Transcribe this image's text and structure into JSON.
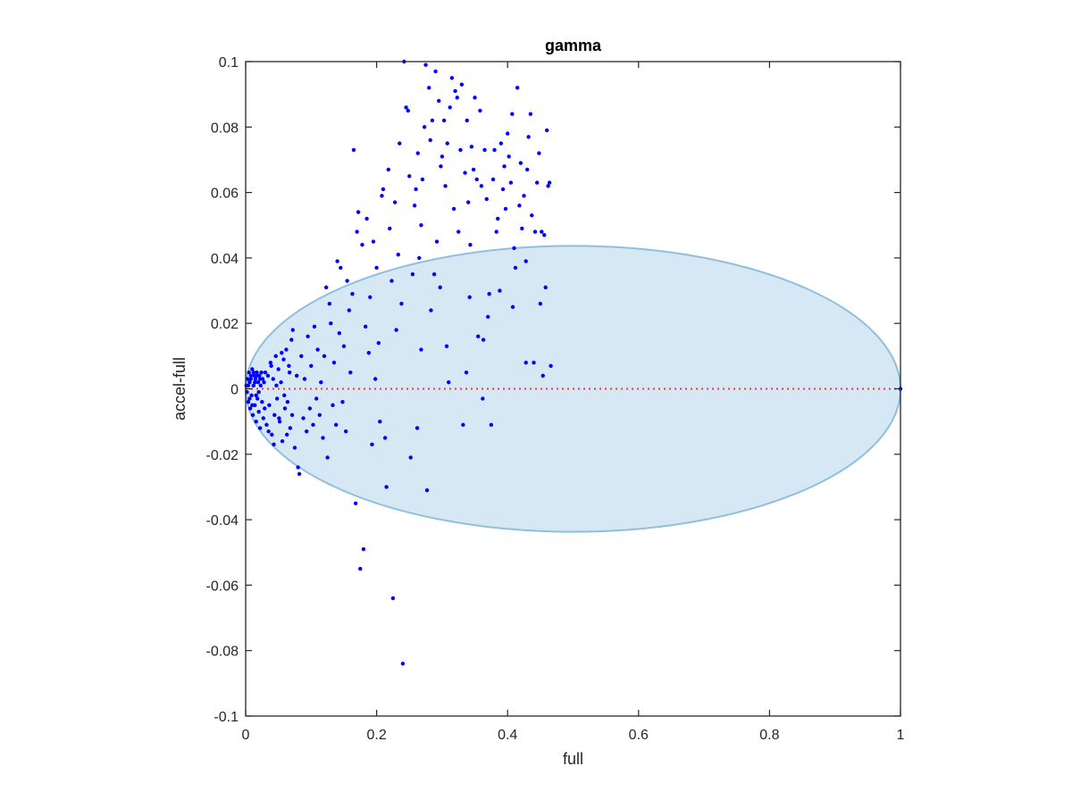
{
  "chart_data": {
    "type": "scatter",
    "title": "gamma",
    "xlabel": "full",
    "ylabel": "accel-full",
    "xlim": [
      0,
      1
    ],
    "ylim": [
      -0.1,
      0.1
    ],
    "xticks": [
      0,
      0.2,
      0.4,
      0.6,
      0.8,
      1
    ],
    "xtick_labels": [
      "0",
      "0.2",
      "0.4",
      "0.6",
      "0.8",
      "1"
    ],
    "yticks": [
      -0.1,
      -0.08,
      -0.06,
      -0.04,
      -0.02,
      0,
      0.02,
      0.04,
      0.06,
      0.08,
      0.1
    ],
    "ytick_labels": [
      "-0.1",
      "-0.08",
      "-0.06",
      "-0.04",
      "-0.02",
      "0",
      "0.02",
      "0.04",
      "0.06",
      "0.08",
      "0.1"
    ],
    "grid": false,
    "colors": {
      "points": "#0000ff",
      "reference_line": "#ff3333",
      "ellipse_fill": "#d6e8f4",
      "ellipse_stroke": "#8fbfdf",
      "axes": "#262626"
    },
    "reference_line": {
      "y": 0,
      "x_range": [
        0,
        1
      ],
      "style": "dotted"
    },
    "ellipse": {
      "x_range": [
        0,
        1
      ],
      "y_range": [
        -0.0437,
        0.0437
      ]
    },
    "series": [
      {
        "points": [
          [
            0.001,
            0.001
          ],
          [
            0.002,
            -0.001
          ],
          [
            0.003,
            0.003
          ],
          [
            0.004,
            -0.004
          ],
          [
            0.005,
            0.005
          ],
          [
            0.006,
            0.002
          ],
          [
            0.007,
            -0.006
          ],
          [
            0.008,
            0.004
          ],
          [
            0.009,
            -0.002
          ],
          [
            0.01,
            0.006
          ],
          [
            0.011,
            -0.008
          ],
          [
            0.012,
            0.001
          ],
          [
            0.013,
            0.004
          ],
          [
            0.014,
            -0.005
          ],
          [
            0.015,
            0.003
          ],
          [
            0.016,
            -0.01
          ],
          [
            0.017,
            0.005
          ],
          [
            0.018,
            -0.003
          ],
          [
            0.019,
            0.002
          ],
          [
            0.02,
            -0.007
          ],
          [
            0.021,
            0.004
          ],
          [
            0.022,
            -0.012
          ],
          [
            0.023,
            0.001
          ],
          [
            0.024,
            0.005
          ],
          [
            0.025,
            -0.004
          ],
          [
            0.026,
            0.003
          ],
          [
            0.027,
            -0.009
          ],
          [
            0.028,
            0.002
          ],
          [
            0.029,
            -0.006
          ],
          [
            0.03,
            0.005
          ],
          [
            0.004,
            0.001
          ],
          [
            0.006,
            -0.003
          ],
          [
            0.008,
            0.003
          ],
          [
            0.01,
            -0.005
          ],
          [
            0.012,
            0.005
          ],
          [
            0.014,
            0.002
          ],
          [
            0.016,
            -0.002
          ],
          [
            0.018,
            0.004
          ],
          [
            0.02,
            -0.001
          ],
          [
            0.022,
            0.003
          ],
          [
            0.032,
            -0.011
          ],
          [
            0.034,
            0.004
          ],
          [
            0.036,
            -0.005
          ],
          [
            0.038,
            0.008
          ],
          [
            0.04,
            -0.014
          ],
          [
            0.042,
            0.003
          ],
          [
            0.044,
            -0.008
          ],
          [
            0.046,
            0.01
          ],
          [
            0.048,
            -0.003
          ],
          [
            0.05,
            0.006
          ],
          [
            0.052,
            -0.01
          ],
          [
            0.054,
            0.002
          ],
          [
            0.056,
            -0.016
          ],
          [
            0.058,
            0.009
          ],
          [
            0.06,
            -0.006
          ],
          [
            0.062,
            0.012
          ],
          [
            0.064,
            -0.004
          ],
          [
            0.066,
            0.007
          ],
          [
            0.068,
            -0.012
          ],
          [
            0.07,
            0.015
          ],
          [
            0.035,
            -0.013
          ],
          [
            0.039,
            0.007
          ],
          [
            0.043,
            -0.017
          ],
          [
            0.047,
            0.001
          ],
          [
            0.051,
            -0.009
          ],
          [
            0.055,
            0.011
          ],
          [
            0.059,
            -0.002
          ],
          [
            0.063,
            -0.014
          ],
          [
            0.067,
            0.005
          ],
          [
            0.071,
            -0.008
          ],
          [
            0.072,
            0.018
          ],
          [
            0.075,
            -0.018
          ],
          [
            0.078,
            0.004
          ],
          [
            0.08,
            -0.024
          ],
          [
            0.082,
            -0.026
          ],
          [
            0.085,
            0.01
          ],
          [
            0.088,
            -0.009
          ],
          [
            0.09,
            0.003
          ],
          [
            0.093,
            -0.013
          ],
          [
            0.095,
            0.016
          ],
          [
            0.098,
            -0.006
          ],
          [
            0.1,
            0.007
          ],
          [
            0.103,
            -0.011
          ],
          [
            0.105,
            0.019
          ],
          [
            0.108,
            -0.003
          ],
          [
            0.11,
            0.012
          ],
          [
            0.113,
            -0.008
          ],
          [
            0.115,
            0.002
          ],
          [
            0.118,
            -0.015
          ],
          [
            0.12,
            0.01
          ],
          [
            0.123,
            0.031
          ],
          [
            0.125,
            -0.021
          ],
          [
            0.128,
            0.026
          ],
          [
            0.13,
            0.02
          ],
          [
            0.133,
            -0.005
          ],
          [
            0.135,
            0.008
          ],
          [
            0.138,
            -0.011
          ],
          [
            0.14,
            0.039
          ],
          [
            0.143,
            0.017
          ],
          [
            0.145,
            0.037
          ],
          [
            0.148,
            -0.004
          ],
          [
            0.15,
            0.013
          ],
          [
            0.153,
            -0.013
          ],
          [
            0.155,
            0.033
          ],
          [
            0.158,
            0.024
          ],
          [
            0.16,
            0.005
          ],
          [
            0.163,
            0.029
          ],
          [
            0.165,
            0.073
          ],
          [
            0.168,
            -0.035
          ],
          [
            0.17,
            0.048
          ],
          [
            0.172,
            0.054
          ],
          [
            0.175,
            -0.055
          ],
          [
            0.178,
            0.044
          ],
          [
            0.18,
            -0.049
          ],
          [
            0.183,
            0.019
          ],
          [
            0.185,
            0.052
          ],
          [
            0.188,
            0.011
          ],
          [
            0.19,
            0.028
          ],
          [
            0.193,
            -0.017
          ],
          [
            0.195,
            0.045
          ],
          [
            0.198,
            0.003
          ],
          [
            0.2,
            0.037
          ],
          [
            0.203,
            0.014
          ],
          [
            0.205,
            -0.01
          ],
          [
            0.208,
            0.059
          ],
          [
            0.21,
            0.061
          ],
          [
            0.213,
            -0.015
          ],
          [
            0.215,
            -0.03
          ],
          [
            0.218,
            0.067
          ],
          [
            0.22,
            0.049
          ],
          [
            0.223,
            0.033
          ],
          [
            0.225,
            -0.064
          ],
          [
            0.228,
            0.057
          ],
          [
            0.23,
            0.018
          ],
          [
            0.233,
            0.041
          ],
          [
            0.235,
            0.075
          ],
          [
            0.238,
            0.026
          ],
          [
            0.24,
            -0.084
          ],
          [
            0.242,
            0.1
          ],
          [
            0.245,
            0.086
          ],
          [
            0.248,
            0.085
          ],
          [
            0.25,
            0.065
          ],
          [
            0.252,
            -0.021
          ],
          [
            0.255,
            0.035
          ],
          [
            0.258,
            0.056
          ],
          [
            0.26,
            0.061
          ],
          [
            0.263,
            0.072
          ],
          [
            0.265,
            0.04
          ],
          [
            0.268,
            0.05
          ],
          [
            0.27,
            0.064
          ],
          [
            0.273,
            0.08
          ],
          [
            0.275,
            0.099
          ],
          [
            0.277,
            -0.031
          ],
          [
            0.28,
            0.092
          ],
          [
            0.282,
            0.076
          ],
          [
            0.285,
            0.082
          ],
          [
            0.288,
            0.035
          ],
          [
            0.29,
            0.097
          ],
          [
            0.292,
            0.045
          ],
          [
            0.295,
            0.088
          ],
          [
            0.298,
            0.068
          ],
          [
            0.3,
            0.071
          ],
          [
            0.303,
            0.082
          ],
          [
            0.305,
            0.062
          ],
          [
            0.308,
            0.075
          ],
          [
            0.31,
            0.002
          ],
          [
            0.312,
            0.086
          ],
          [
            0.315,
            0.095
          ],
          [
            0.318,
            0.055
          ],
          [
            0.32,
            0.091
          ],
          [
            0.323,
            0.089
          ],
          [
            0.325,
            0.048
          ],
          [
            0.328,
            0.073
          ],
          [
            0.33,
            0.093
          ],
          [
            0.332,
            -0.011
          ],
          [
            0.335,
            0.066
          ],
          [
            0.338,
            0.082
          ],
          [
            0.34,
            0.057
          ],
          [
            0.343,
            0.044
          ],
          [
            0.345,
            0.074
          ],
          [
            0.348,
            0.067
          ],
          [
            0.35,
            0.089
          ],
          [
            0.353,
            0.064
          ],
          [
            0.355,
            0.016
          ],
          [
            0.358,
            0.085
          ],
          [
            0.36,
            0.062
          ],
          [
            0.363,
            0.015
          ],
          [
            0.365,
            0.073
          ],
          [
            0.368,
            0.058
          ],
          [
            0.37,
            0.022
          ],
          [
            0.372,
            0.029
          ],
          [
            0.375,
            -0.011
          ],
          [
            0.378,
            0.064
          ],
          [
            0.38,
            0.073
          ],
          [
            0.383,
            0.048
          ],
          [
            0.385,
            0.052
          ],
          [
            0.388,
            0.03
          ],
          [
            0.39,
            0.075
          ],
          [
            0.393,
            0.061
          ],
          [
            0.395,
            0.068
          ],
          [
            0.397,
            0.055
          ],
          [
            0.4,
            0.078
          ],
          [
            0.402,
            0.071
          ],
          [
            0.405,
            0.063
          ],
          [
            0.407,
            0.084
          ],
          [
            0.41,
            0.043
          ],
          [
            0.412,
            0.037
          ],
          [
            0.415,
            0.092
          ],
          [
            0.418,
            0.056
          ],
          [
            0.42,
            0.069
          ],
          [
            0.422,
            0.049
          ],
          [
            0.425,
            0.059
          ],
          [
            0.428,
            0.008
          ],
          [
            0.43,
            0.067
          ],
          [
            0.432,
            0.077
          ],
          [
            0.435,
            0.084
          ],
          [
            0.437,
            0.053
          ],
          [
            0.44,
            0.008
          ],
          [
            0.442,
            0.048
          ],
          [
            0.445,
            0.063
          ],
          [
            0.448,
            0.072
          ],
          [
            0.45,
            0.026
          ],
          [
            0.452,
            0.048
          ],
          [
            0.454,
            0.004
          ],
          [
            0.456,
            0.047
          ],
          [
            0.458,
            0.031
          ],
          [
            0.46,
            0.079
          ],
          [
            0.462,
            0.062
          ],
          [
            0.464,
            0.063
          ],
          [
            0.466,
            0.007
          ],
          [
            0.262,
            -0.012
          ],
          [
            0.268,
            0.012
          ],
          [
            0.283,
            0.024
          ],
          [
            0.297,
            0.031
          ],
          [
            0.307,
            0.013
          ],
          [
            0.337,
            0.005
          ],
          [
            0.342,
            0.028
          ],
          [
            0.362,
            -0.003
          ],
          [
            0.408,
            0.025
          ],
          [
            0.428,
            0.039
          ],
          [
            1.0,
            0.0
          ]
        ]
      }
    ]
  }
}
